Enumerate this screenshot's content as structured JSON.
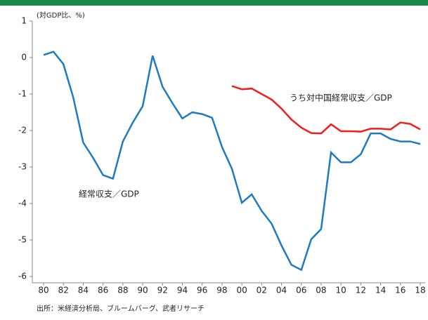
{
  "chart_data": {
    "type": "line",
    "y_label": "(対GDP比、%)",
    "source": "出所：米経済分析局、ブルームバーグ、武者リサーチ",
    "x": [
      1980,
      1981,
      1982,
      1983,
      1984,
      1985,
      1986,
      1987,
      1988,
      1989,
      1990,
      1991,
      1992,
      1993,
      1994,
      1995,
      1996,
      1997,
      1998,
      1999,
      2000,
      2001,
      2002,
      2003,
      2004,
      2005,
      2006,
      2007,
      2008,
      2009,
      2010,
      2011,
      2012,
      2013,
      2014,
      2015,
      2016,
      2017,
      2018
    ],
    "series": [
      {
        "name": "経常収支／GDP",
        "color": "#1f7ac3",
        "values": [
          0.07,
          0.16,
          -0.18,
          -1.1,
          -2.33,
          -2.75,
          -3.22,
          -3.32,
          -2.3,
          -1.78,
          -1.33,
          0.05,
          -0.8,
          -1.25,
          -1.67,
          -1.5,
          -1.55,
          -1.65,
          -2.45,
          -3.05,
          -3.98,
          -3.75,
          -4.2,
          -4.55,
          -5.15,
          -5.68,
          -5.82,
          -4.98,
          -4.7,
          -2.6,
          -2.87,
          -2.87,
          -2.65,
          -2.08,
          -2.08,
          -2.23,
          -2.3,
          -2.3,
          -2.37
        ]
      },
      {
        "name": "うち対中国経常収支／GDP",
        "color": "#f01e1e",
        "values": [
          null,
          null,
          null,
          null,
          null,
          null,
          null,
          null,
          null,
          null,
          null,
          null,
          null,
          null,
          null,
          null,
          null,
          null,
          null,
          -0.78,
          -0.87,
          -0.85,
          -1.0,
          -1.15,
          -1.4,
          -1.7,
          -1.92,
          -2.07,
          -2.08,
          -1.83,
          -2.02,
          -2.02,
          -2.03,
          -1.95,
          -1.95,
          -1.97,
          -1.78,
          -1.82,
          -1.97
        ]
      }
    ],
    "xlim": [
      1980,
      2018
    ],
    "xticks": [
      {
        "value": 1980,
        "label": "80"
      },
      {
        "value": 1982,
        "label": "82"
      },
      {
        "value": 1984,
        "label": "84"
      },
      {
        "value": 1986,
        "label": "86"
      },
      {
        "value": 1988,
        "label": "88"
      },
      {
        "value": 1990,
        "label": "90"
      },
      {
        "value": 1992,
        "label": "92"
      },
      {
        "value": 1994,
        "label": "94"
      },
      {
        "value": 1996,
        "label": "96"
      },
      {
        "value": 1998,
        "label": "98"
      },
      {
        "value": 2000,
        "label": "00"
      },
      {
        "value": 2002,
        "label": "02"
      },
      {
        "value": 2004,
        "label": "04"
      },
      {
        "value": 2006,
        "label": "06"
      },
      {
        "value": 2008,
        "label": "08"
      },
      {
        "value": 2010,
        "label": "10"
      },
      {
        "value": 2012,
        "label": "12"
      },
      {
        "value": 2014,
        "label": "14"
      },
      {
        "value": 2016,
        "label": "16"
      },
      {
        "value": 2018,
        "label": "18"
      }
    ],
    "ylim": [
      -6,
      1
    ],
    "yticks": [
      1,
      0,
      -1,
      -2,
      -3,
      -4,
      -5,
      -6
    ],
    "grid": false
  }
}
